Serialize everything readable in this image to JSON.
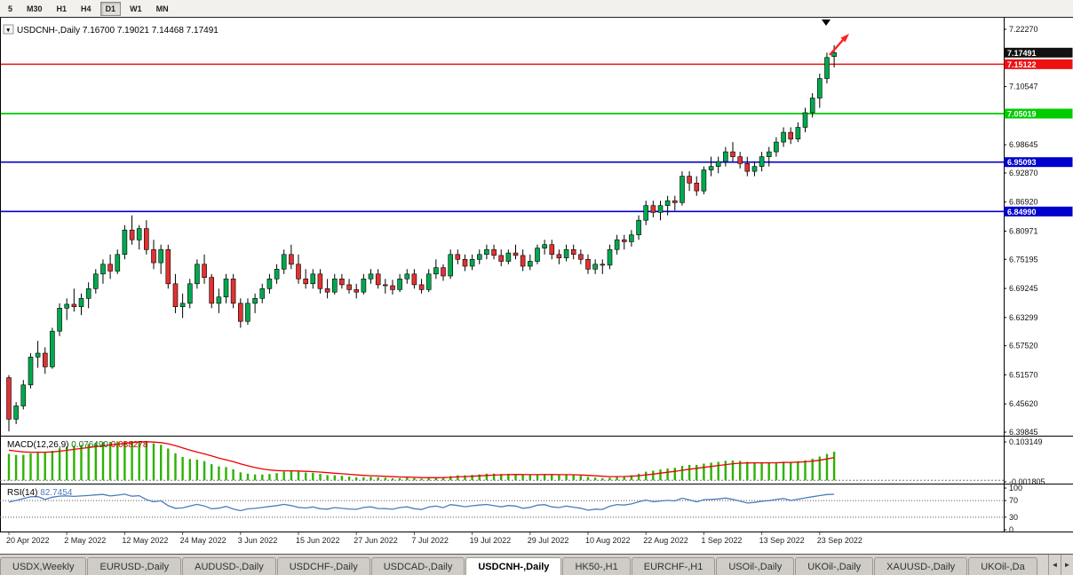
{
  "toolbar": {
    "timeframes": [
      "5",
      "M30",
      "H1",
      "H4",
      "D1",
      "W1",
      "MN"
    ],
    "active_timeframe": "D1"
  },
  "chart_title": {
    "dropdown_icon": "▼",
    "symbol": "USDCNH-,Daily",
    "open": "7.16700",
    "high": "7.19021",
    "low": "7.14468",
    "close": "7.17491"
  },
  "chart_data": {
    "type": "candlestick",
    "symbol": "USDCNH",
    "timeframe": "Daily",
    "price_axis": {
      "max": 7.2227,
      "min": 6.39845,
      "ticks": [
        "7.22270",
        "7.10547",
        "6.98645",
        "6.92870",
        "6.86920",
        "6.80971",
        "6.75195",
        "6.69245",
        "6.63299",
        "6.57520",
        "6.51570",
        "6.45620",
        "6.39845"
      ]
    },
    "hlines": [
      {
        "name": "current-price",
        "price": 7.17491,
        "label": "7.17491",
        "color": "#111111",
        "line": false,
        "width": 1
      },
      {
        "name": "resistance-line",
        "price": 7.15122,
        "label": "7.15122",
        "color": "#ee1111",
        "line": true,
        "width": 1.4
      },
      {
        "name": "support-line-1",
        "price": 7.05019,
        "label": "7.05019",
        "color": "#00cc00",
        "line": true,
        "width": 1.8
      },
      {
        "name": "support-line-2",
        "price": 6.95093,
        "label": "6.95093",
        "color": "#0000cc",
        "line": true,
        "width": 1.6
      },
      {
        "name": "support-line-3",
        "price": 6.8499,
        "label": "6.84990",
        "color": "#0000cc",
        "line": true,
        "width": 1.6
      }
    ],
    "date_labels": [
      {
        "label": "20 Apr 2022",
        "bar": 0
      },
      {
        "label": "2 May 2022",
        "bar": 8
      },
      {
        "label": "12 May 2022",
        "bar": 16
      },
      {
        "label": "24 May 2022",
        "bar": 24
      },
      {
        "label": "3 Jun 2022",
        "bar": 32
      },
      {
        "label": "15 Jun 2022",
        "bar": 40
      },
      {
        "label": "27 Jun 2022",
        "bar": 48
      },
      {
        "label": "7 Jul 2022",
        "bar": 56
      },
      {
        "label": "19 Jul 2022",
        "bar": 64
      },
      {
        "label": "29 Jul 2022",
        "bar": 72
      },
      {
        "label": "10 Aug 2022",
        "bar": 80
      },
      {
        "label": "22 Aug 2022",
        "bar": 88
      },
      {
        "label": "1 Sep 2022",
        "bar": 96
      },
      {
        "label": "13 Sep 2022",
        "bar": 104
      },
      {
        "label": "23 Sep 2022",
        "bar": 112
      }
    ],
    "colors": {
      "up": "#00a94f",
      "down": "#e03232",
      "wick": "#000000",
      "background": "#ffffff"
    },
    "annotations": {
      "top_marker": "▼",
      "trend_arrow_color": "#ff2020"
    },
    "candles": [
      [
        6.51,
        6.515,
        6.4,
        6.425
      ],
      [
        6.425,
        6.46,
        6.415,
        6.452
      ],
      [
        6.452,
        6.505,
        6.445,
        6.495
      ],
      [
        6.495,
        6.56,
        6.488,
        6.552
      ],
      [
        6.552,
        6.585,
        6.53,
        6.56
      ],
      [
        6.56,
        6.572,
        6.518,
        6.532
      ],
      [
        6.532,
        6.612,
        6.528,
        6.605
      ],
      [
        6.605,
        6.662,
        6.595,
        6.652
      ],
      [
        6.652,
        6.672,
        6.628,
        6.66
      ],
      [
        6.66,
        6.692,
        6.645,
        6.655
      ],
      [
        6.655,
        6.682,
        6.638,
        6.672
      ],
      [
        6.672,
        6.705,
        6.652,
        6.692
      ],
      [
        6.692,
        6.732,
        6.682,
        6.722
      ],
      [
        6.722,
        6.752,
        6.702,
        6.742
      ],
      [
        6.742,
        6.762,
        6.712,
        6.728
      ],
      [
        6.728,
        6.772,
        6.722,
        6.762
      ],
      [
        6.762,
        6.822,
        6.752,
        6.812
      ],
      [
        6.812,
        6.842,
        6.782,
        6.792
      ],
      [
        6.792,
        6.822,
        6.772,
        6.815
      ],
      [
        6.815,
        6.832,
        6.762,
        6.772
      ],
      [
        6.772,
        6.792,
        6.732,
        6.745
      ],
      [
        6.745,
        6.782,
        6.722,
        6.772
      ],
      [
        6.772,
        6.782,
        6.692,
        6.702
      ],
      [
        6.702,
        6.722,
        6.642,
        6.655
      ],
      [
        6.655,
        6.682,
        6.632,
        6.662
      ],
      [
        6.662,
        6.712,
        6.652,
        6.702
      ],
      [
        6.702,
        6.752,
        6.692,
        6.742
      ],
      [
        6.742,
        6.762,
        6.702,
        6.715
      ],
      [
        6.715,
        6.722,
        6.652,
        6.662
      ],
      [
        6.662,
        6.692,
        6.642,
        6.675
      ],
      [
        6.675,
        6.722,
        6.662,
        6.712
      ],
      [
        6.712,
        6.722,
        6.652,
        6.662
      ],
      [
        6.662,
        6.672,
        6.612,
        6.625
      ],
      [
        6.625,
        6.672,
        6.618,
        6.662
      ],
      [
        6.662,
        6.682,
        6.642,
        6.672
      ],
      [
        6.672,
        6.702,
        6.662,
        6.692
      ],
      [
        6.692,
        6.722,
        6.682,
        6.712
      ],
      [
        6.712,
        6.742,
        6.702,
        6.732
      ],
      [
        6.732,
        6.772,
        6.722,
        6.762
      ],
      [
        6.762,
        6.782,
        6.732,
        6.742
      ],
      [
        6.742,
        6.762,
        6.702,
        6.712
      ],
      [
        6.712,
        6.732,
        6.692,
        6.702
      ],
      [
        6.702,
        6.732,
        6.692,
        6.722
      ],
      [
        6.722,
        6.732,
        6.682,
        6.692
      ],
      [
        6.692,
        6.712,
        6.672,
        6.685
      ],
      [
        6.685,
        6.722,
        6.68,
        6.712
      ],
      [
        6.712,
        6.722,
        6.692,
        6.7
      ],
      [
        6.7,
        6.712,
        6.682,
        6.69
      ],
      [
        6.69,
        6.702,
        6.672,
        6.685
      ],
      [
        6.685,
        6.722,
        6.68,
        6.712
      ],
      [
        6.712,
        6.732,
        6.702,
        6.722
      ],
      [
        6.722,
        6.732,
        6.692,
        6.7
      ],
      [
        6.7,
        6.712,
        6.682,
        6.698
      ],
      [
        6.698,
        6.71,
        6.68,
        6.69
      ],
      [
        6.69,
        6.722,
        6.685,
        6.712
      ],
      [
        6.712,
        6.732,
        6.702,
        6.722
      ],
      [
        6.722,
        6.732,
        6.692,
        6.7
      ],
      [
        6.7,
        6.712,
        6.682,
        6.69
      ],
      [
        6.69,
        6.732,
        6.685,
        6.722
      ],
      [
        6.722,
        6.752,
        6.712,
        6.735
      ],
      [
        6.735,
        6.742,
        6.708,
        6.718
      ],
      [
        6.718,
        6.772,
        6.712,
        6.762
      ],
      [
        6.762,
        6.772,
        6.742,
        6.752
      ],
      [
        6.752,
        6.762,
        6.728,
        6.738
      ],
      [
        6.738,
        6.762,
        6.73,
        6.752
      ],
      [
        6.752,
        6.772,
        6.742,
        6.762
      ],
      [
        6.762,
        6.782,
        6.752,
        6.772
      ],
      [
        6.772,
        6.782,
        6.752,
        6.76
      ],
      [
        6.76,
        6.772,
        6.738,
        6.748
      ],
      [
        6.748,
        6.772,
        6.742,
        6.765
      ],
      [
        6.765,
        6.782,
        6.752,
        6.76
      ],
      [
        6.76,
        6.772,
        6.728,
        6.738
      ],
      [
        6.738,
        6.762,
        6.73,
        6.748
      ],
      [
        6.748,
        6.782,
        6.742,
        6.775
      ],
      [
        6.775,
        6.792,
        6.762,
        6.782
      ],
      [
        6.782,
        6.792,
        6.752,
        6.762
      ],
      [
        6.762,
        6.772,
        6.742,
        6.755
      ],
      [
        6.755,
        6.782,
        6.748,
        6.772
      ],
      [
        6.772,
        6.782,
        6.752,
        6.762
      ],
      [
        6.762,
        6.772,
        6.742,
        6.752
      ],
      [
        6.752,
        6.762,
        6.722,
        6.732
      ],
      [
        6.732,
        6.752,
        6.722,
        6.742
      ],
      [
        6.742,
        6.752,
        6.722,
        6.74
      ],
      [
        6.74,
        6.782,
        6.732,
        6.772
      ],
      [
        6.772,
        6.802,
        6.762,
        6.792
      ],
      [
        6.792,
        6.802,
        6.772,
        6.788
      ],
      [
        6.788,
        6.812,
        6.778,
        6.802
      ],
      [
        6.802,
        6.842,
        6.792,
        6.832
      ],
      [
        6.832,
        6.872,
        6.822,
        6.862
      ],
      [
        6.862,
        6.872,
        6.838,
        6.848
      ],
      [
        6.848,
        6.872,
        6.832,
        6.862
      ],
      [
        6.862,
        6.882,
        6.842,
        6.872
      ],
      [
        6.872,
        6.882,
        6.852,
        6.868
      ],
      [
        6.868,
        6.932,
        6.862,
        6.922
      ],
      [
        6.922,
        6.932,
        6.892,
        6.908
      ],
      [
        6.908,
        6.922,
        6.882,
        6.892
      ],
      [
        6.892,
        6.942,
        6.885,
        6.935
      ],
      [
        6.935,
        6.962,
        6.922,
        6.942
      ],
      [
        6.942,
        6.962,
        6.928,
        6.952
      ],
      [
        6.952,
        6.982,
        6.942,
        6.972
      ],
      [
        6.972,
        6.992,
        6.952,
        6.962
      ],
      [
        6.962,
        6.972,
        6.938,
        6.948
      ],
      [
        6.948,
        6.962,
        6.922,
        6.932
      ],
      [
        6.932,
        6.952,
        6.922,
        6.942
      ],
      [
        6.942,
        6.972,
        6.932,
        6.962
      ],
      [
        6.962,
        6.982,
        6.942,
        6.972
      ],
      [
        6.972,
        7.002,
        6.962,
        6.992
      ],
      [
        6.992,
        7.022,
        6.982,
        7.012
      ],
      [
        7.012,
        7.022,
        6.988,
        6.998
      ],
      [
        6.998,
        7.032,
        6.992,
        7.022
      ],
      [
        7.022,
        7.062,
        7.012,
        7.052
      ],
      [
        7.052,
        7.092,
        7.042,
        7.082
      ],
      [
        7.082,
        7.132,
        7.062,
        7.122
      ],
      [
        7.122,
        7.175,
        7.112,
        7.165
      ],
      [
        7.167,
        7.19021,
        7.14468,
        7.17491
      ]
    ]
  },
  "macd_panel": {
    "label": "MACD(12,26,9)",
    "value_main": "0.076490",
    "value_signal": "0.088278",
    "axis_top": "0.103149",
    "axis_bottom": "-0.001805",
    "params": {
      "fast": 12,
      "slow": 26,
      "signal": 9
    },
    "colors": {
      "histogram": "#2db200",
      "signal_line": "#ee0000"
    }
  },
  "rsi_panel": {
    "label": "RSI(14)",
    "value": "82.7454",
    "period": 14,
    "levels": [
      "100",
      "70",
      "30",
      "0"
    ],
    "color": "#4a7ebb"
  },
  "tabs": {
    "items": [
      {
        "label": "USDX,Weekly",
        "active": false
      },
      {
        "label": "EURUSD-,Daily",
        "active": false
      },
      {
        "label": "AUDUSD-,Daily",
        "active": false
      },
      {
        "label": "USDCHF-,Daily",
        "active": false
      },
      {
        "label": "USDCAD-,Daily",
        "active": false
      },
      {
        "label": "USDCNH-,Daily",
        "active": true
      },
      {
        "label": "HK50-,H1",
        "active": false
      },
      {
        "label": "EURCHF-,H1",
        "active": false
      },
      {
        "label": "USOil-,Daily",
        "active": false
      },
      {
        "label": "UKOil-,Daily",
        "active": false
      },
      {
        "label": "XAUUSD-,Daily",
        "active": false
      },
      {
        "label": "UKOil-,Da",
        "active": false
      }
    ],
    "scroll_left_icon": "◄",
    "scroll_right_icon": "►"
  }
}
